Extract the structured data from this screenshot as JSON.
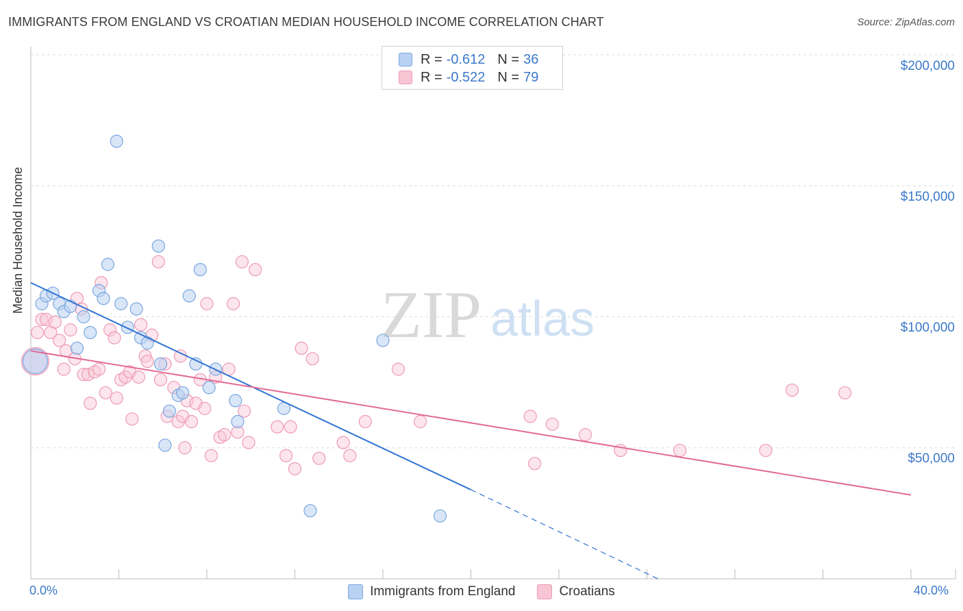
{
  "title": "IMMIGRANTS FROM ENGLAND VS CROATIAN MEDIAN HOUSEHOLD INCOME CORRELATION CHART",
  "source": "Source: ZipAtlas.com",
  "watermark": {
    "zip": "ZIP",
    "atlas": "atlas"
  },
  "legend_top": [
    {
      "r_label": "R =",
      "r_value": "-0.612",
      "n_label": "N =",
      "n_value": "36"
    },
    {
      "r_label": "R =",
      "r_value": "-0.522",
      "n_label": "N =",
      "n_value": "79"
    }
  ],
  "legend_bottom": [
    "Immigrants from England",
    "Croatians"
  ],
  "colors": {
    "england_fill": "#b9d2f3",
    "england_stroke": "#7aa6df",
    "england_line": "#2e73d2",
    "croatian_fill": "#f8c5d5",
    "croatian_stroke": "#ee9ab5",
    "croatian_line": "#e26a93",
    "tick_label": "#3b78c9",
    "grid": "#dddddd"
  },
  "chart_data": {
    "type": "scatter",
    "title": "IMMIGRANTS FROM ENGLAND VS CROATIAN MEDIAN HOUSEHOLD INCOME CORRELATION CHART",
    "xlabel": "",
    "ylabel": "Median Household Income",
    "xlim": [
      0,
      40
    ],
    "ylim": [
      0,
      200000
    ],
    "x_tick_labels": [
      "0.0%",
      "40.0%"
    ],
    "y_ticks": [
      50000,
      100000,
      150000,
      200000
    ],
    "y_tick_labels": [
      "$50,000",
      "$100,000",
      "$150,000",
      "$200,000"
    ],
    "grid": "horizontal dashed",
    "series": [
      {
        "name": "Immigrants from England",
        "points": [
          [
            0.2,
            83000
          ],
          [
            0.5,
            105000
          ],
          [
            0.7,
            108000
          ],
          [
            1.0,
            109000
          ],
          [
            1.3,
            105000
          ],
          [
            1.5,
            102000
          ],
          [
            1.8,
            104000
          ],
          [
            2.1,
            88000
          ],
          [
            2.4,
            100000
          ],
          [
            2.7,
            94000
          ],
          [
            3.1,
            110000
          ],
          [
            3.3,
            107000
          ],
          [
            3.5,
            120000
          ],
          [
            3.9,
            167000
          ],
          [
            4.1,
            105000
          ],
          [
            4.4,
            96000
          ],
          [
            4.8,
            103000
          ],
          [
            5.0,
            92000
          ],
          [
            5.3,
            90000
          ],
          [
            5.8,
            127000
          ],
          [
            5.9,
            82000
          ],
          [
            6.1,
            51000
          ],
          [
            6.3,
            64000
          ],
          [
            6.7,
            70000
          ],
          [
            6.9,
            71000
          ],
          [
            7.2,
            108000
          ],
          [
            7.5,
            82000
          ],
          [
            7.7,
            118000
          ],
          [
            8.1,
            73000
          ],
          [
            8.4,
            80000
          ],
          [
            9.3,
            68000
          ],
          [
            9.4,
            60000
          ],
          [
            11.5,
            65000
          ],
          [
            12.7,
            26000
          ],
          [
            16.0,
            91000
          ],
          [
            18.6,
            24000
          ]
        ],
        "trend": {
          "x": [
            0,
            20
          ],
          "y": [
            113000,
            34000
          ]
        },
        "trend_dashed": {
          "x": [
            20,
            28.5
          ],
          "y": [
            34000,
            0
          ]
        }
      },
      {
        "name": "Croatians",
        "points": [
          [
            0.2,
            83000
          ],
          [
            0.3,
            94000
          ],
          [
            0.5,
            99000
          ],
          [
            0.7,
            99000
          ],
          [
            0.9,
            94000
          ],
          [
            1.1,
            98000
          ],
          [
            1.3,
            91000
          ],
          [
            1.5,
            80000
          ],
          [
            1.6,
            87000
          ],
          [
            1.8,
            95000
          ],
          [
            2.0,
            84000
          ],
          [
            2.1,
            107000
          ],
          [
            2.3,
            103000
          ],
          [
            2.4,
            78000
          ],
          [
            2.6,
            78000
          ],
          [
            2.7,
            67000
          ],
          [
            2.9,
            79000
          ],
          [
            3.1,
            80000
          ],
          [
            3.2,
            113000
          ],
          [
            3.4,
            71000
          ],
          [
            3.6,
            95000
          ],
          [
            3.8,
            92000
          ],
          [
            3.9,
            69000
          ],
          [
            4.1,
            76000
          ],
          [
            4.3,
            77000
          ],
          [
            4.5,
            79000
          ],
          [
            4.6,
            61000
          ],
          [
            4.9,
            77000
          ],
          [
            5.0,
            97000
          ],
          [
            5.2,
            85000
          ],
          [
            5.3,
            83000
          ],
          [
            5.5,
            93000
          ],
          [
            5.8,
            121000
          ],
          [
            5.9,
            76000
          ],
          [
            6.1,
            82000
          ],
          [
            6.2,
            62000
          ],
          [
            6.5,
            73000
          ],
          [
            6.7,
            60000
          ],
          [
            6.8,
            85000
          ],
          [
            6.9,
            62000
          ],
          [
            7.0,
            50000
          ],
          [
            7.1,
            68000
          ],
          [
            7.3,
            60000
          ],
          [
            7.5,
            67000
          ],
          [
            7.7,
            76000
          ],
          [
            7.9,
            65000
          ],
          [
            8.0,
            105000
          ],
          [
            8.2,
            47000
          ],
          [
            8.4,
            77000
          ],
          [
            8.6,
            54000
          ],
          [
            8.8,
            55000
          ],
          [
            9.0,
            80000
          ],
          [
            9.2,
            105000
          ],
          [
            9.4,
            56000
          ],
          [
            9.6,
            121000
          ],
          [
            9.7,
            64000
          ],
          [
            9.9,
            52000
          ],
          [
            10.2,
            118000
          ],
          [
            11.2,
            58000
          ],
          [
            11.6,
            47000
          ],
          [
            11.8,
            58000
          ],
          [
            12.0,
            42000
          ],
          [
            12.3,
            88000
          ],
          [
            12.8,
            84000
          ],
          [
            13.1,
            46000
          ],
          [
            14.2,
            52000
          ],
          [
            14.5,
            47000
          ],
          [
            15.2,
            60000
          ],
          [
            16.7,
            80000
          ],
          [
            17.7,
            60000
          ],
          [
            22.7,
            62000
          ],
          [
            22.9,
            44000
          ],
          [
            23.7,
            59000
          ],
          [
            25.2,
            55000
          ],
          [
            26.8,
            49000
          ],
          [
            29.5,
            49000
          ],
          [
            33.4,
            49000
          ],
          [
            34.6,
            72000
          ],
          [
            37.0,
            71000
          ]
        ],
        "trend": {
          "x": [
            0,
            40
          ],
          "y": [
            87000,
            32000
          ]
        }
      }
    ]
  }
}
